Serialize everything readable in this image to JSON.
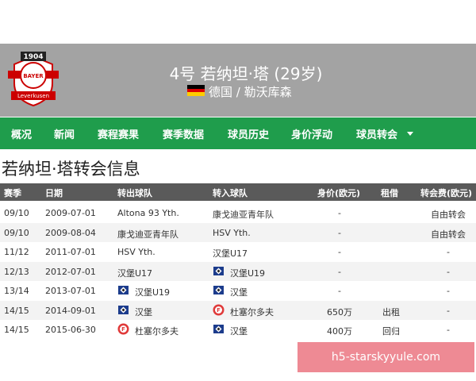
{
  "header": {
    "logo": {
      "year": "1904",
      "name": "BAYER",
      "city": "Leverkusen"
    },
    "title": "4号 若纳坦·塔 (29岁)",
    "subtitle": "德国 / 勒沃库森"
  },
  "nav": [
    "概况",
    "新闻",
    "赛程赛果",
    "赛季数据",
    "球员历史",
    "身价浮动",
    "球员转会"
  ],
  "heading": "若纳坦·塔转会信息",
  "table": {
    "columns": [
      "赛季",
      "日期",
      "转出球队",
      "转入球队",
      "身价(欧元)",
      "租借",
      "转会费(欧元)"
    ],
    "rows": [
      [
        "09/10",
        "2009-07-01",
        "Altona 93 Yth.",
        "康戈迪亚青年队",
        "-",
        null,
        "自由转会"
      ],
      [
        "09/10",
        "2009-08-04",
        "康戈迪亚青年队",
        "HSV Yth.",
        "-",
        null,
        "自由转会"
      ],
      [
        "11/12",
        "2011-07-01",
        "HSV Yth.",
        "汉堡U17",
        "-",
        null,
        "-"
      ],
      [
        "12/13",
        "2012-07-01",
        "汉堡U17",
        "汉堡U19",
        "-",
        null,
        "-"
      ],
      [
        "13/14",
        "2013-07-01",
        "汉堡U19",
        "汉堡",
        "-",
        null,
        "-"
      ],
      [
        "14/15",
        "2014-09-01",
        "汉堡",
        "杜塞尔多夫",
        "650万",
        "出租",
        "-"
      ],
      [
        "14/15",
        "2015-06-30",
        "杜塞尔多夫",
        "汉堡",
        "400万",
        "回归",
        "-"
      ]
    ]
  },
  "watermark": "h5-starskyyule.com"
}
